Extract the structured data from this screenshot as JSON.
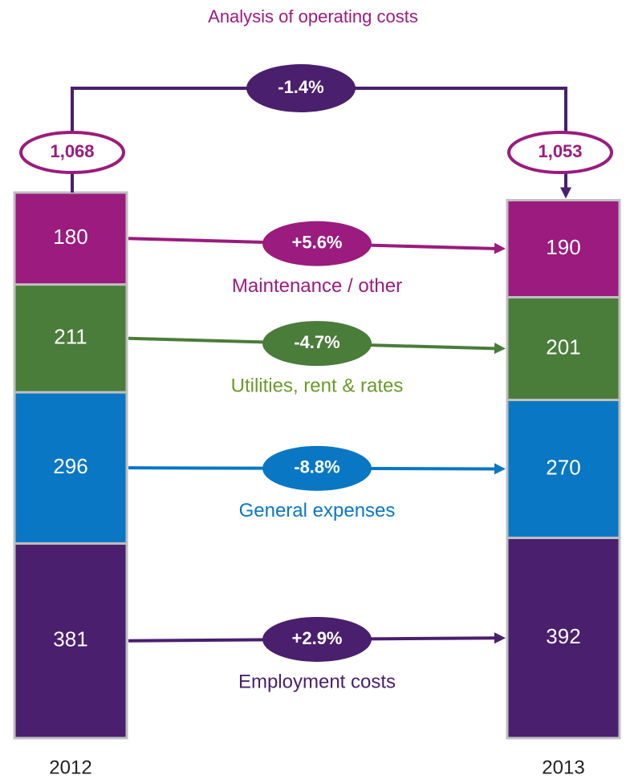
{
  "chart_data": {
    "type": "stacked_bridge",
    "title": "Analysis of operating costs",
    "categories": [
      "2012",
      "2013"
    ],
    "totals": [
      1068,
      1053
    ],
    "total_labels": [
      "1,068",
      "1,053"
    ],
    "total_change": "-1.4%",
    "series": [
      {
        "name": "Employment costs",
        "color": "#4a1f6e",
        "label_color": "#4a1f6e",
        "values": [
          381,
          392
        ],
        "change": "+2.9%"
      },
      {
        "name": "General expenses",
        "color": "#0a77c4",
        "label_color": "#0a77c4",
        "values": [
          296,
          270
        ],
        "change": "-8.8%"
      },
      {
        "name": "Utilities, rent & rates",
        "color": "#4a7c3a",
        "label_color": "#6a9a2a",
        "values": [
          211,
          201
        ],
        "change": "-4.7%"
      },
      {
        "name": "Maintenance / other",
        "color": "#9b1b7e",
        "label_color": "#9b1b7e",
        "values": [
          180,
          190
        ],
        "change": "+5.6%"
      }
    ]
  }
}
